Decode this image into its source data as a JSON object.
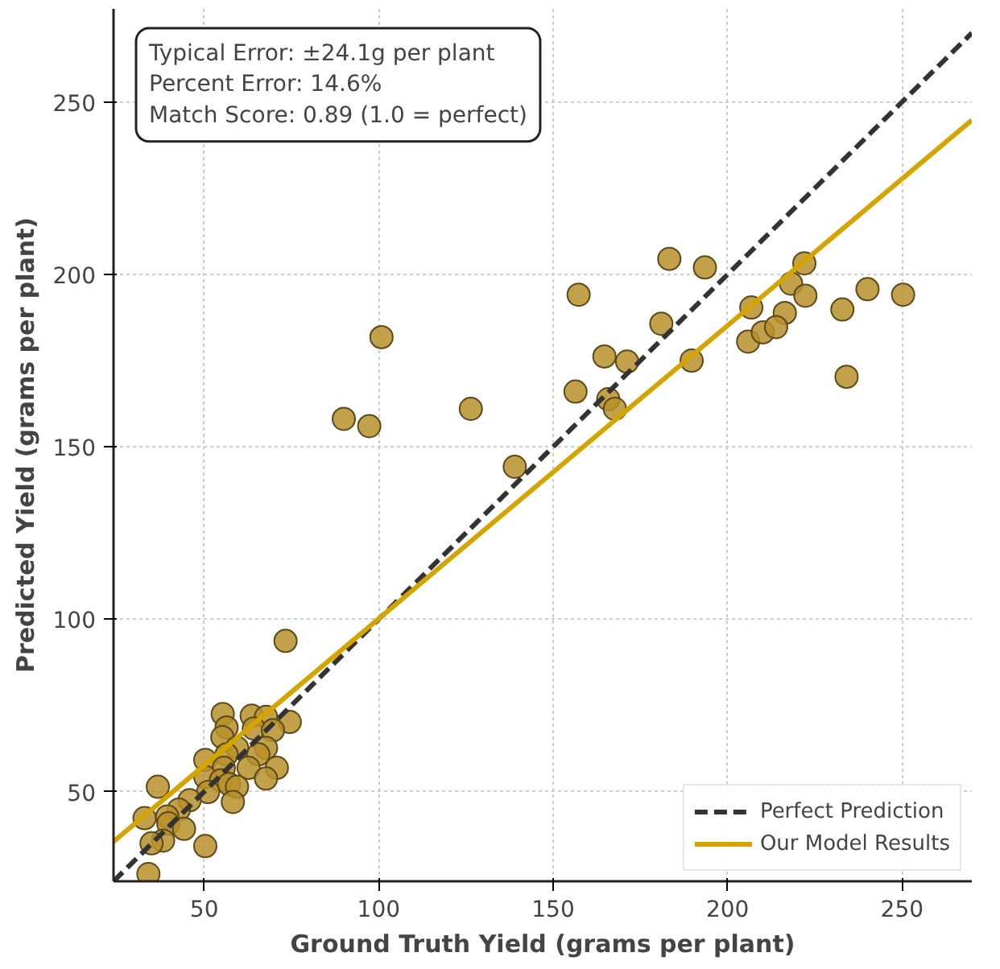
{
  "chart_data": {
    "type": "scatter",
    "xlabel": "Ground Truth Yield (grams per plant)",
    "ylabel": "Predicted Yield (grams per plant)",
    "xlim": [
      24,
      270
    ],
    "ylim": [
      24,
      277
    ],
    "xticks": [
      50,
      100,
      150,
      200,
      250
    ],
    "yticks": [
      50,
      100,
      150,
      200,
      250
    ],
    "grid": true,
    "legend": "bottom right",
    "annotations": [
      "Typical Error: ±24.1g per plant",
      "Percent Error: 14.6%",
      "Match Score: 0.89 (1.0 = perfect)"
    ],
    "series": [
      {
        "marker": "circle",
        "color": "#b8902a",
        "x": [
          73.3,
          55.3,
          63.6,
          67.7,
          74.5,
          56.4,
          64.2,
          69.7,
          55.2,
          59.4,
          67.7,
          56.4,
          65.5,
          50.3,
          55.6,
          62.7,
          70.8,
          50.3,
          67.7,
          54.8,
          57.1,
          59.4,
          51.1,
          36.7,
          45.8,
          42.7,
          58.2,
          32.9,
          39.4,
          39.7,
          44.2,
          38.2,
          34.9,
          50.3,
          34.0,
          100.8,
          90.0,
          97.3,
          126.4,
          139.0,
          157.3,
          156.4,
          164.7,
          165.8,
          167.7,
          183.3,
          193.5,
          181.0,
          171.2,
          189.7,
          222.0,
          218.2,
          222.3,
          206.8,
          216.4,
          205.9,
          210.1,
          213.9,
          232.9,
          240.1,
          250.3,
          234.1
        ],
        "values": [
          93.7,
          72.5,
          72.0,
          71.7,
          70.2,
          68.6,
          68.3,
          67.8,
          65.8,
          62.7,
          62.7,
          60.8,
          60.8,
          59.2,
          56.9,
          56.9,
          56.9,
          54.2,
          53.8,
          53.3,
          52.2,
          51.4,
          49.9,
          51.4,
          47.5,
          44.8,
          47.0,
          42.3,
          42.8,
          40.8,
          39.2,
          35.8,
          35.0,
          34.2,
          26.1,
          181.8,
          158.1,
          156.0,
          161.0,
          144.2,
          194.1,
          166.0,
          176.2,
          163.8,
          161.0,
          204.5,
          202.0,
          185.7,
          174.7,
          175.0,
          203.2,
          197.3,
          193.8,
          190.4,
          188.8,
          180.5,
          183.2,
          184.7,
          189.8,
          195.7,
          194.1,
          170.3
        ]
      },
      {
        "type": "line",
        "name": "Perfect Prediction",
        "color": "#333333",
        "line_style": "dashed",
        "x": [
          24,
          270
        ],
        "values": [
          24,
          270
        ]
      },
      {
        "type": "line",
        "name": "Our Model Results",
        "color": "#d4a500",
        "line_style": "solid",
        "x": [
          24,
          270
        ],
        "values": [
          35.5,
          244.7
        ]
      }
    ]
  }
}
